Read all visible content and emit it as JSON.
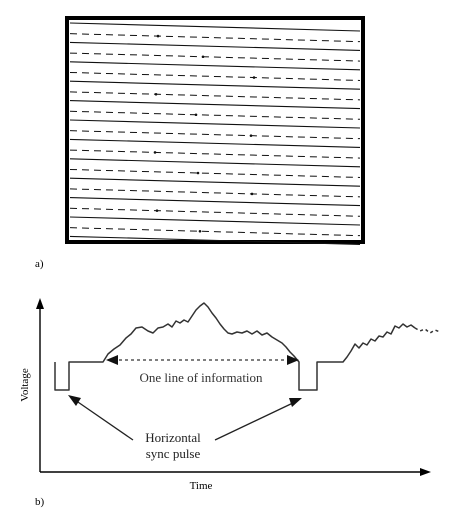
{
  "panel_a": {
    "label": "a)",
    "frame_color": "#000000",
    "line_color": "#111111",
    "solid_scan_lines": 12,
    "dashed_retrace_lines": 11
  },
  "panel_b": {
    "label": "b)",
    "y_axis_label": "Voltage",
    "x_axis_label": "Time",
    "info_label": "One line of information",
    "sync_label_line1": "Horizontal",
    "sync_label_line2": "sync pulse"
  }
}
